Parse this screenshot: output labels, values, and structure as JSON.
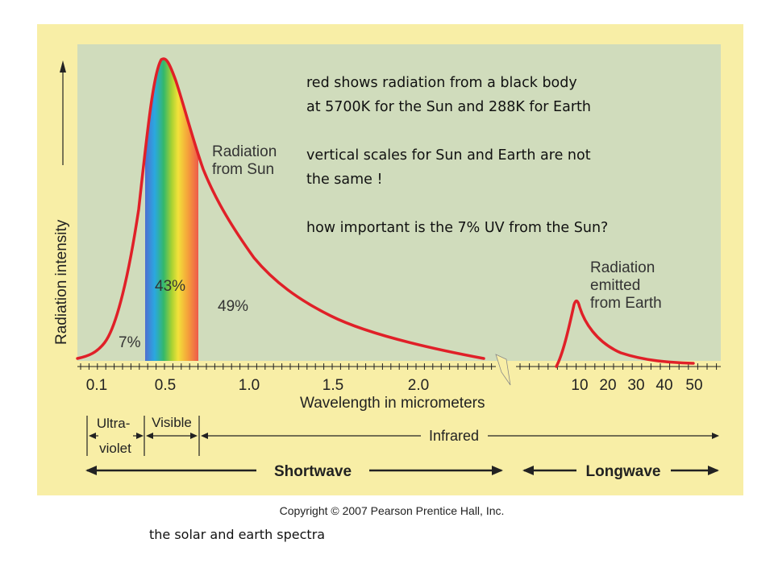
{
  "figure": {
    "y_axis_label": "Radiation intensity",
    "x_axis_label": "Wavelength in micrometers",
    "sun_ticks": [
      "0.1",
      "0.5",
      "1.0",
      "1.5",
      "2.0"
    ],
    "earth_ticks": [
      "10",
      "20",
      "30",
      "40",
      "50"
    ],
    "sun_label": [
      "Radiation",
      "from Sun"
    ],
    "earth_label": [
      "Radiation",
      "emitted",
      "from Earth"
    ],
    "pct_uv": "7%",
    "pct_visible": "43%",
    "pct_ir": "49%",
    "bands": {
      "ultraviolet": [
        "Ultra-",
        "violet"
      ],
      "visible": "Visible",
      "infrared": "Infrared",
      "shortwave": "Shortwave",
      "longwave": "Longwave"
    },
    "copyright": "Copyright © 2007 Pearson Prentice Hall, Inc.",
    "colors": {
      "curve": "#e02028",
      "plot_bg": "#d0dcbc",
      "frame_bg": "#f8eea6"
    }
  },
  "notes": [
    "red shows radiation from a black body",
    "at 5700K for the Sun and 288K for Earth",
    "vertical scales for Sun and Earth are not",
    "the same !",
    "how important is the 7% UV from the Sun?"
  ],
  "caption": "the solar and earth spectra"
}
